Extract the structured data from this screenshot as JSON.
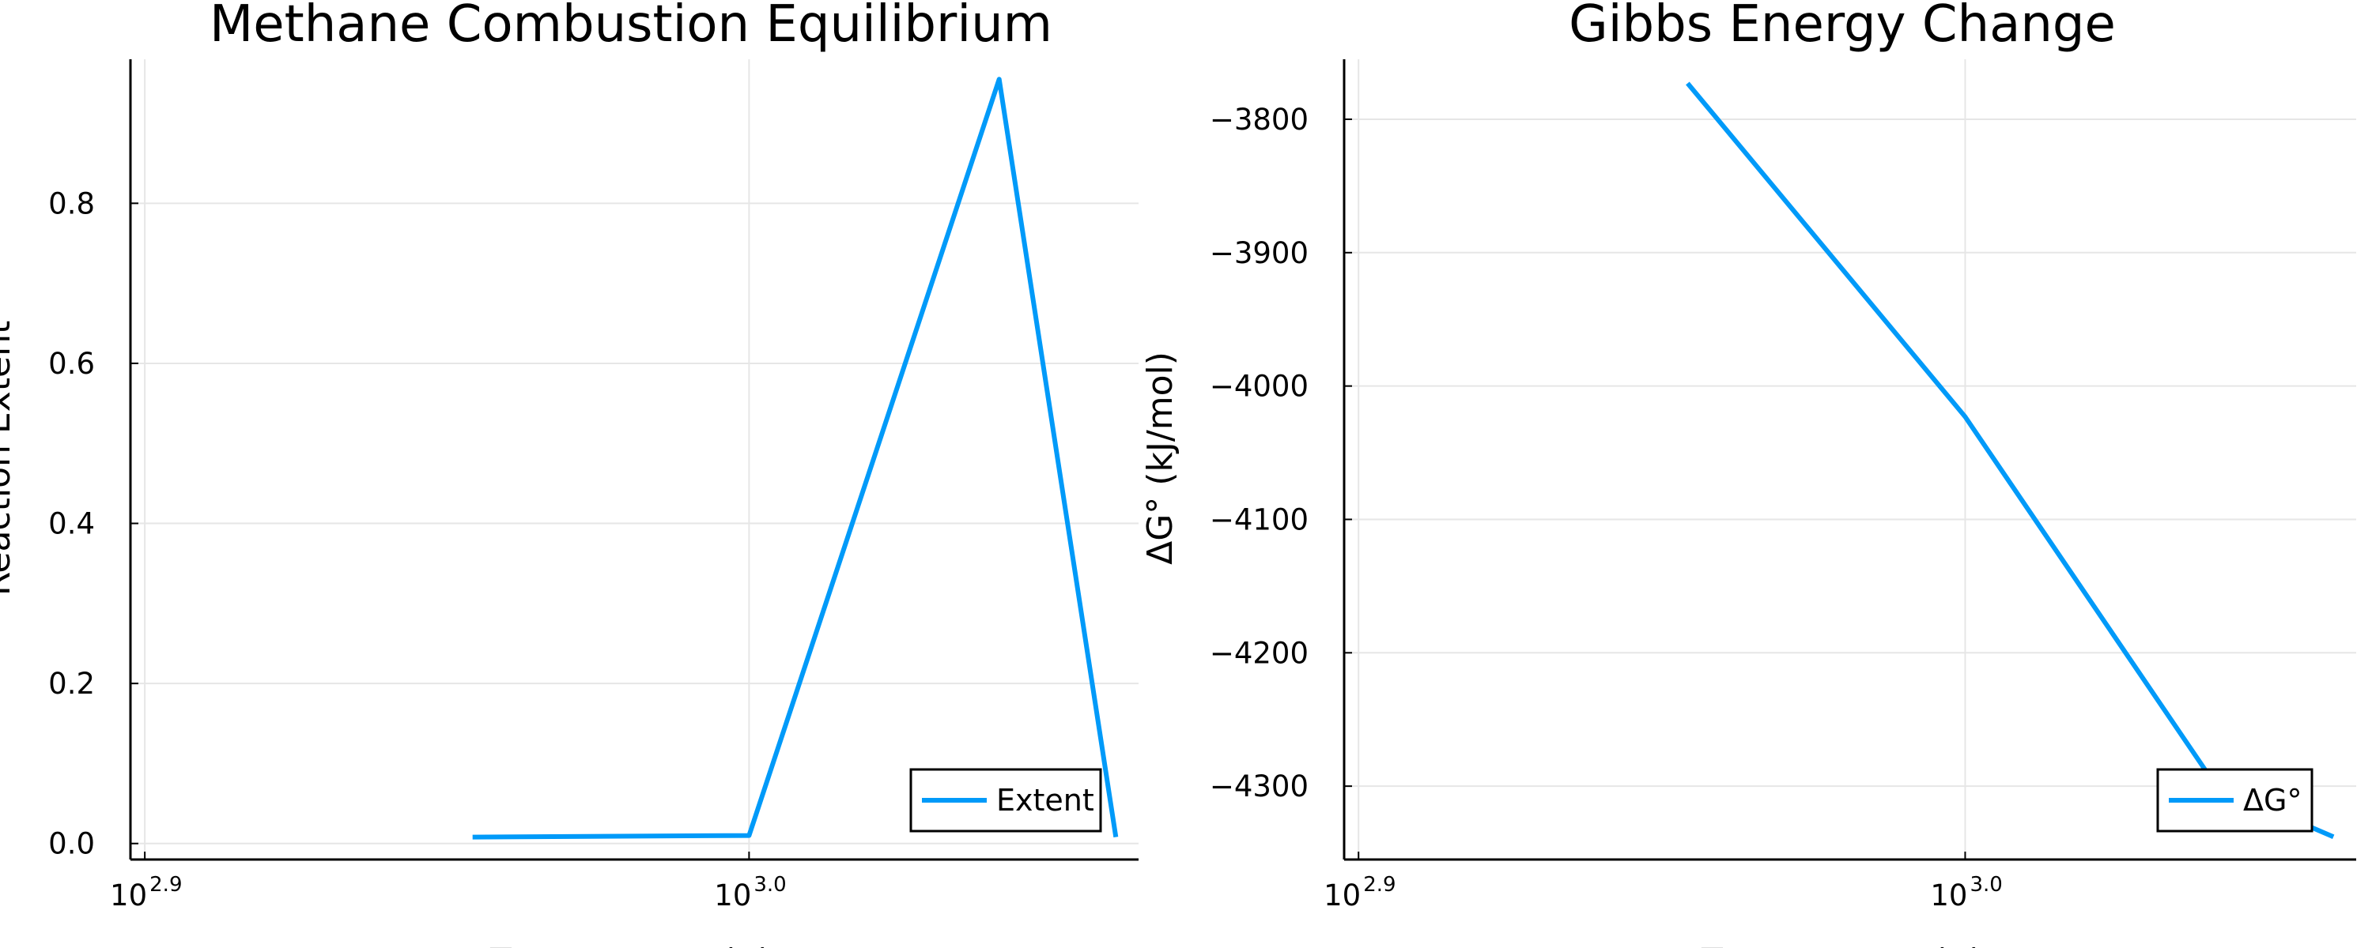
{
  "chart_data": [
    {
      "type": "line",
      "title": "Methane Combustion Equilibrium",
      "xlabel": "Temperature (K)",
      "ylabel": "Reaction Extent",
      "xscale": "log10",
      "xlim": [
        790,
        1160
      ],
      "ylim": [
        -0.02,
        0.98
      ],
      "x_ticks": [
        {
          "base": "10",
          "exp": "2.9",
          "value": 794.33
        },
        {
          "base": "10",
          "exp": "3.0",
          "value": 1000
        }
      ],
      "y_ticks": [
        "0.0",
        "0.2",
        "0.4",
        "0.6",
        "0.8"
      ],
      "y_tick_values": [
        0.0,
        0.2,
        0.4,
        0.6,
        0.8
      ],
      "grid": true,
      "legend_position": "bottom-right",
      "color": "#009af9",
      "series": [
        {
          "name": "Extent",
          "x": [
            900,
            1000,
            1100,
            1150
          ],
          "y": [
            0.008,
            0.01,
            0.955,
            0.008
          ]
        }
      ]
    },
    {
      "type": "line",
      "title": "Gibbs Energy Change",
      "xlabel": "Temperature (K)",
      "ylabel": "ΔG° (kJ/mol)",
      "xscale": "log10",
      "xlim": [
        790,
        1160
      ],
      "ylim": [
        -4355,
        -3755
      ],
      "x_ticks": [
        {
          "base": "10",
          "exp": "2.9",
          "value": 794.33
        },
        {
          "base": "10",
          "exp": "3.0",
          "value": 1000
        }
      ],
      "y_ticks": [
        "−3800",
        "−3900",
        "−4000",
        "−4100",
        "−4200",
        "−4300"
      ],
      "y_tick_values": [
        -3800,
        -3900,
        -4000,
        -4100,
        -4200,
        -4300
      ],
      "grid": true,
      "legend_position": "bottom-right",
      "color": "#009af9",
      "series": [
        {
          "name": "ΔG°",
          "x": [
            900,
            1000,
            1100,
            1150
          ],
          "y": [
            -3773,
            -4023,
            -4300,
            -4338
          ]
        }
      ]
    }
  ]
}
